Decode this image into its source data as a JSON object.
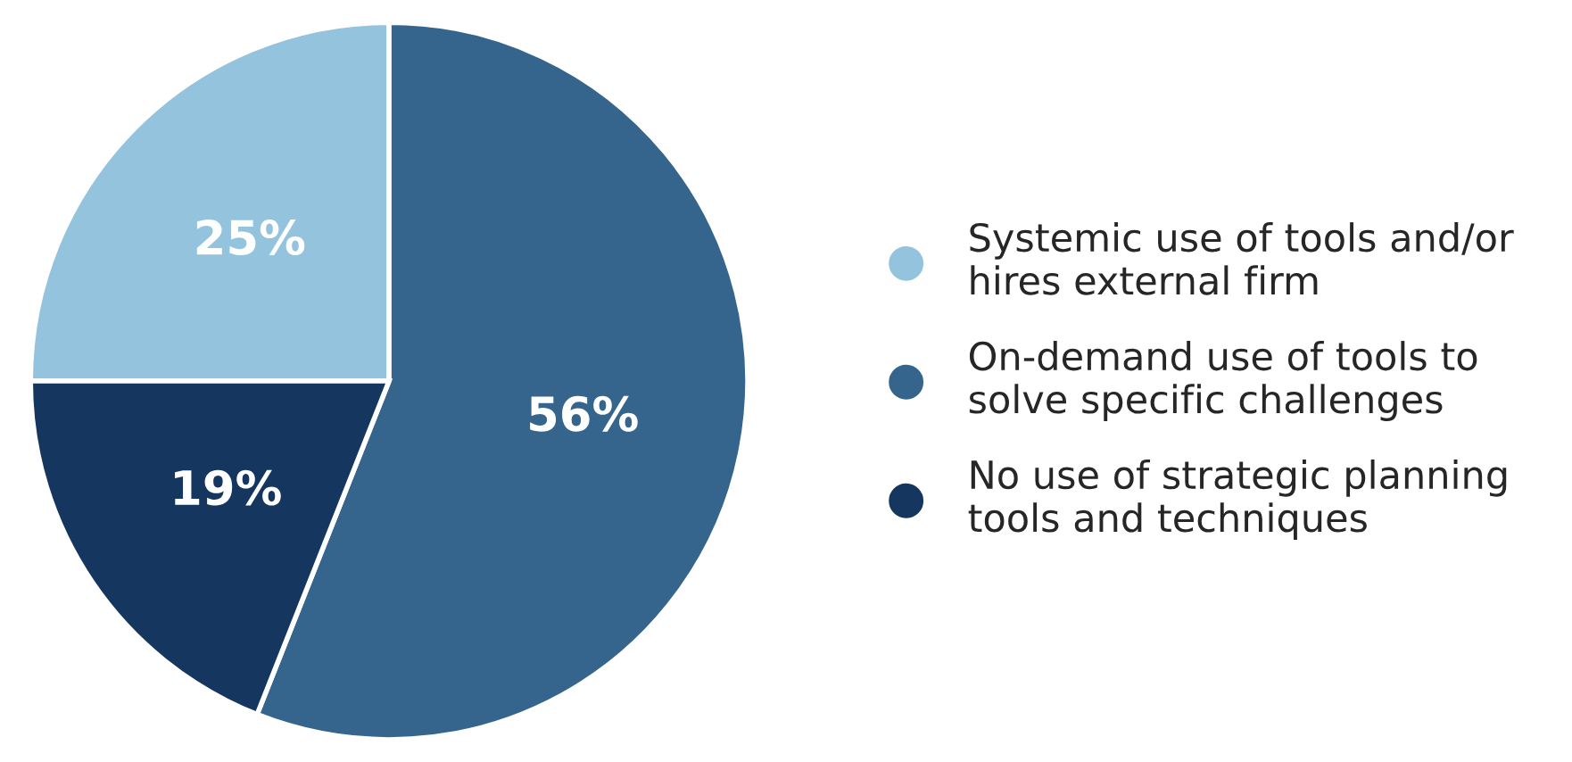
{
  "chart_data": {
    "type": "pie",
    "categories": [
      "Systemic use of tools and/or hires external firm",
      "On-demand use of tools to solve specific challenges",
      "No use of strategic planning tools and techniques"
    ],
    "values": [
      25,
      56,
      19
    ],
    "colors": [
      "#94c3dd",
      "#35658c",
      "#15365f"
    ],
    "value_labels": [
      "25%",
      "56%",
      "19%"
    ],
    "legend": "right"
  }
}
